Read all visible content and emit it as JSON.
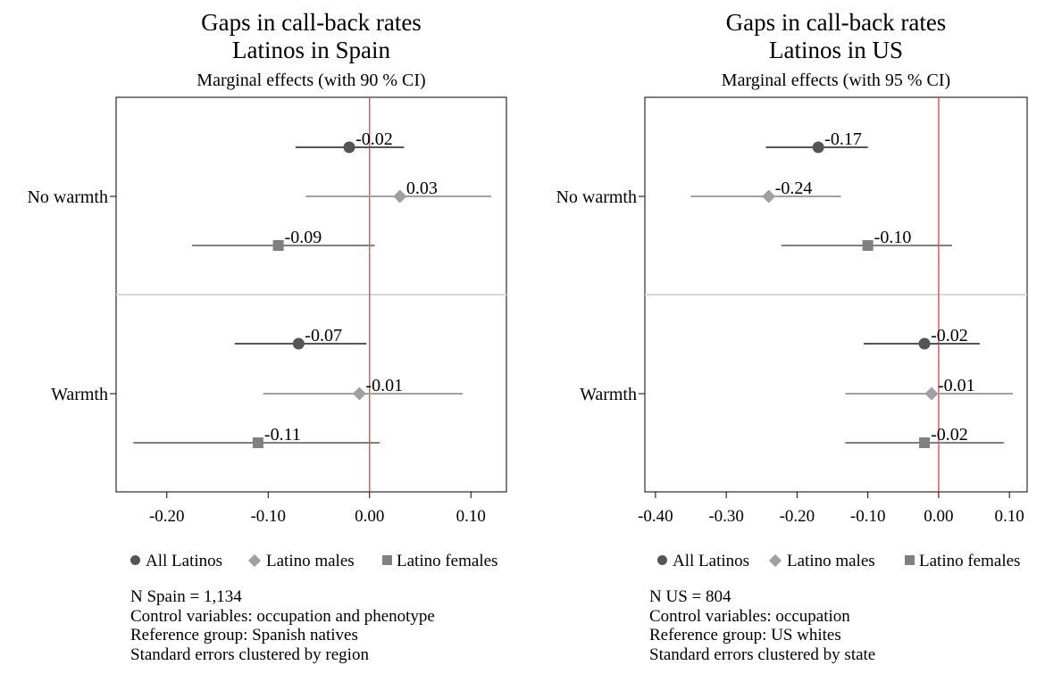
{
  "chart_data": [
    {
      "type": "dot-whisker",
      "title": "Gaps in call-back rates",
      "subtitle_line": "Latinos in Spain",
      "subtitle": "Marginal effects (with 90 % CI)",
      "categories": [
        "No warmth",
        "Warmth"
      ],
      "xlim": [
        -0.25,
        0.135
      ],
      "xticks": [
        "-0.20",
        "-0.10",
        "0.00",
        "0.10"
      ],
      "xtick_values": [
        -0.2,
        -0.1,
        0.0,
        0.1
      ],
      "reference_line": 0.0,
      "series": [
        {
          "name": "All Latinos",
          "marker": "circle",
          "color": "#555555",
          "points": [
            {
              "category": "No warmth",
              "estimate": -0.02,
              "label": "-0.02",
              "ci": [
                -0.073,
                0.034
              ]
            },
            {
              "category": "Warmth",
              "estimate": -0.07,
              "label": "-0.07",
              "ci": [
                -0.133,
                -0.003
              ]
            }
          ]
        },
        {
          "name": "Latino males",
          "marker": "diamond",
          "color": "#a0a0a0",
          "points": [
            {
              "category": "No warmth",
              "estimate": 0.03,
              "label": "0.03",
              "ci": [
                -0.063,
                0.12
              ]
            },
            {
              "category": "Warmth",
              "estimate": -0.01,
              "label": "-0.01",
              "ci": [
                -0.105,
                0.092
              ]
            }
          ]
        },
        {
          "name": "Latino females",
          "marker": "square",
          "color": "#808080",
          "points": [
            {
              "category": "No warmth",
              "estimate": -0.09,
              "label": "-0.09",
              "ci": [
                -0.175,
                0.005
              ]
            },
            {
              "category": "Warmth",
              "estimate": -0.11,
              "label": "-0.11",
              "ci": [
                -0.233,
                0.01
              ]
            }
          ]
        }
      ],
      "legend": [
        "All Latinos",
        "Latino males",
        "Latino females"
      ],
      "notes": [
        "N Spain = 1,134",
        "Control variables: occupation and phenotype",
        "Reference group: Spanish natives",
        "Standard errors clustered by region"
      ]
    },
    {
      "type": "dot-whisker",
      "title": "Gaps in call-back rates",
      "subtitle_line": "Latinos in US",
      "subtitle": "Marginal effects (with 95 % CI)",
      "categories": [
        "No warmth",
        "Warmth"
      ],
      "xlim": [
        -0.415,
        0.125
      ],
      "xticks": [
        "-0.40",
        "-0.30",
        "-0.20",
        "-0.10",
        "0.00",
        "0.10"
      ],
      "xtick_values": [
        -0.4,
        -0.3,
        -0.2,
        -0.1,
        0.0,
        0.1
      ],
      "reference_line": 0.0,
      "series": [
        {
          "name": "All Latinos",
          "marker": "circle",
          "color": "#555555",
          "points": [
            {
              "category": "No warmth",
              "estimate": -0.17,
              "label": "-0.17",
              "ci": [
                -0.244,
                -0.1
              ]
            },
            {
              "category": "Warmth",
              "estimate": -0.02,
              "label": "-0.02",
              "ci": [
                -0.106,
                0.058
              ]
            }
          ]
        },
        {
          "name": "Latino males",
          "marker": "diamond",
          "color": "#a0a0a0",
          "points": [
            {
              "category": "No warmth",
              "estimate": -0.24,
              "label": "-0.24",
              "ci": [
                -0.35,
                -0.138
              ]
            },
            {
              "category": "Warmth",
              "estimate": -0.01,
              "label": "-0.01",
              "ci": [
                -0.132,
                0.105
              ]
            }
          ]
        },
        {
          "name": "Latino females",
          "marker": "square",
          "color": "#808080",
          "points": [
            {
              "category": "No warmth",
              "estimate": -0.1,
              "label": "-0.10",
              "ci": [
                -0.222,
                0.019
              ]
            },
            {
              "category": "Warmth",
              "estimate": -0.02,
              "label": "-0.02",
              "ci": [
                -0.132,
                0.092
              ]
            }
          ]
        }
      ],
      "legend": [
        "All Latinos",
        "Latino males",
        "Latino females"
      ],
      "notes": [
        "N US = 804",
        "Control variables: occupation",
        "Reference group: US whites",
        "Standard errors clustered by state"
      ]
    }
  ],
  "colors": {
    "reference_line": "#e03030",
    "separator": "#d8d8d8",
    "axis": "#000000"
  }
}
